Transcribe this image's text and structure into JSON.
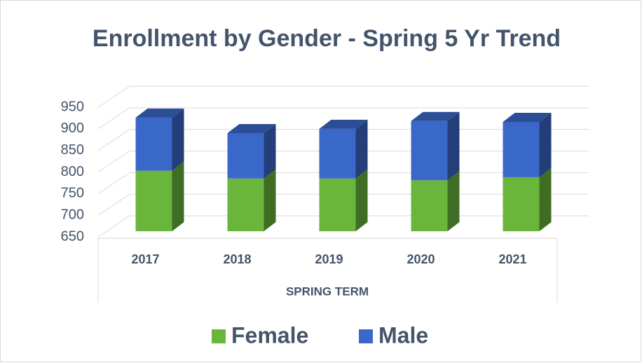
{
  "chart_data": {
    "type": "bar3d_stacked",
    "title": "Enrollment by Gender - Spring 5 Yr Trend",
    "x_label": "SPRING TERM",
    "categories": [
      "2017",
      "2018",
      "2019",
      "2020",
      "2021"
    ],
    "series": [
      {
        "name": "Female",
        "color": "#6ab53c",
        "values": [
          790,
          772,
          772,
          768,
          775
        ]
      },
      {
        "name": "Male",
        "color": "#3a68c8",
        "values": [
          123,
          105,
          115,
          137,
          128
        ]
      }
    ],
    "ylim": [
      650,
      950
    ],
    "yticks": [
      650,
      700,
      750,
      800,
      850,
      900,
      950
    ],
    "grid": true,
    "legend": "bottom"
  }
}
